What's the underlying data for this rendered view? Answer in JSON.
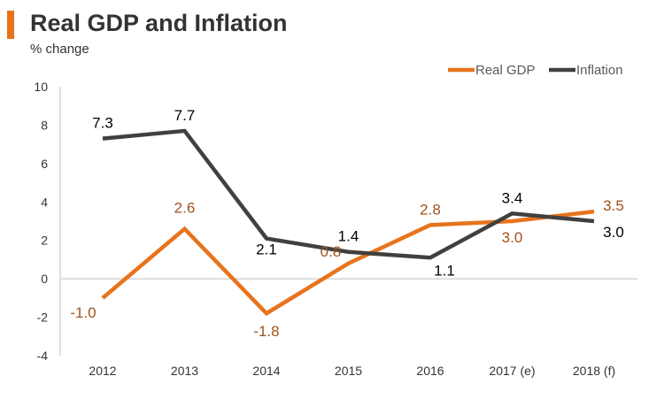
{
  "chart_data": {
    "type": "line",
    "title": "Real GDP and Inflation",
    "subtitle": "% change",
    "categories": [
      "2012",
      "2013",
      "2014",
      "2015",
      "2016",
      "2017 (e)",
      "2018 (f)"
    ],
    "ylim": [
      -4,
      10
    ],
    "yticks": [
      10,
      8,
      6,
      4,
      2,
      0,
      -2,
      -4
    ],
    "series": [
      {
        "name": "Real GDP",
        "color": "#e8731c",
        "label_color": "#a0521b",
        "values": [
          -1.0,
          2.6,
          -1.8,
          0.8,
          2.8,
          3.0,
          3.5
        ],
        "labels": [
          "-1.0",
          "2.6",
          "-1.8",
          "0.8",
          "2.8",
          "3.0",
          "3.5"
        ]
      },
      {
        "name": "Inflation",
        "color": "#404040",
        "label_color": "#000000",
        "values": [
          7.3,
          7.7,
          2.1,
          1.4,
          1.1,
          3.4,
          3.0
        ],
        "labels": [
          "7.3",
          "7.7",
          "2.1",
          "1.4",
          "1.1",
          "3.4",
          "3.0"
        ]
      }
    ],
    "legend_position": "top-right"
  },
  "accent_color": "#e8731c"
}
